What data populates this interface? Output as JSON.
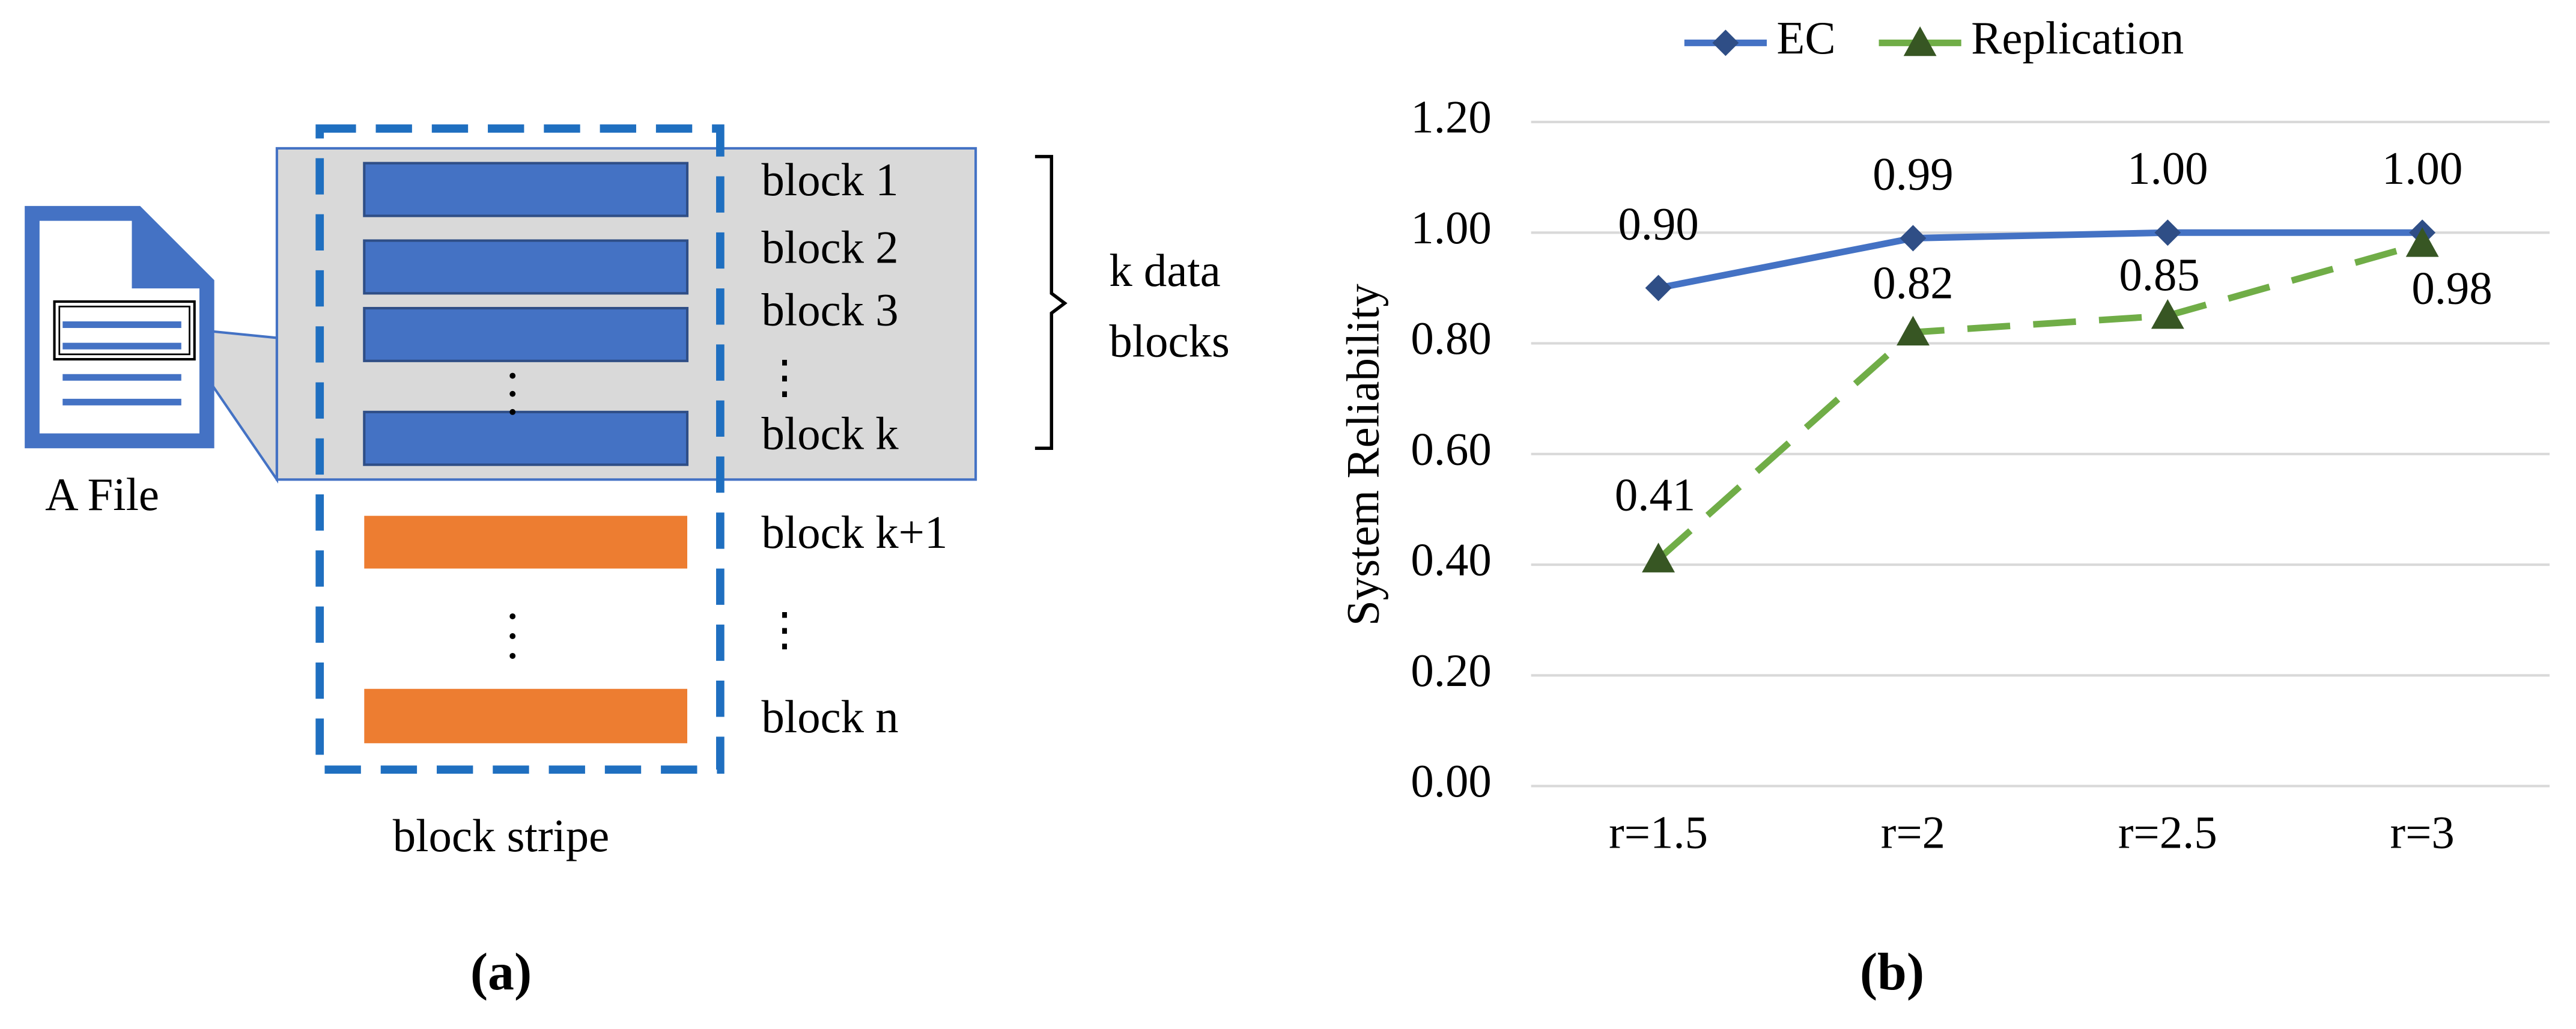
{
  "diagram": {
    "file_label": "A File",
    "block_labels": [
      "block 1",
      "block 2",
      "block 3",
      "⋮",
      "block k",
      "block k+1",
      "⋮",
      "block n"
    ],
    "brace_label": [
      "k data",
      "blocks"
    ],
    "stripe_label": "block stripe",
    "caption": "(a)"
  },
  "chart_data": {
    "type": "line",
    "caption": "(b)",
    "y_label": "System  Reliability",
    "categories": [
      "r=1.5",
      "r=2",
      "r=2.5",
      "r=3"
    ],
    "series": [
      {
        "name": "EC",
        "color": "#4472c4",
        "marker_color": "#2f4e86",
        "marker": "diamond",
        "dashed": false,
        "values": [
          0.9,
          0.99,
          1.0,
          1.0
        ],
        "value_labels": [
          "0.90",
          "0.99",
          "1.00",
          "1.00"
        ]
      },
      {
        "name": "Replication",
        "color": "#70ad47",
        "marker_color": "#375623",
        "marker": "triangle",
        "dashed": true,
        "values": [
          0.41,
          0.82,
          0.85,
          0.98
        ]
      }
    ],
    "ylim": [
      0,
      1.2
    ],
    "yticks": [
      {
        "value": 0,
        "label": "0.00"
      },
      {
        "value": 0.2,
        "label": "0.20"
      },
      {
        "value": 0.4,
        "label": "0.40"
      },
      {
        "value": 0.6,
        "label": "0.60"
      },
      {
        "value": 0.8,
        "label": "0.80"
      },
      {
        "value": 1.0,
        "label": "1.00"
      },
      {
        "value": 1.2,
        "label": "1.20"
      }
    ],
    "grid": true,
    "legend": "top"
  }
}
